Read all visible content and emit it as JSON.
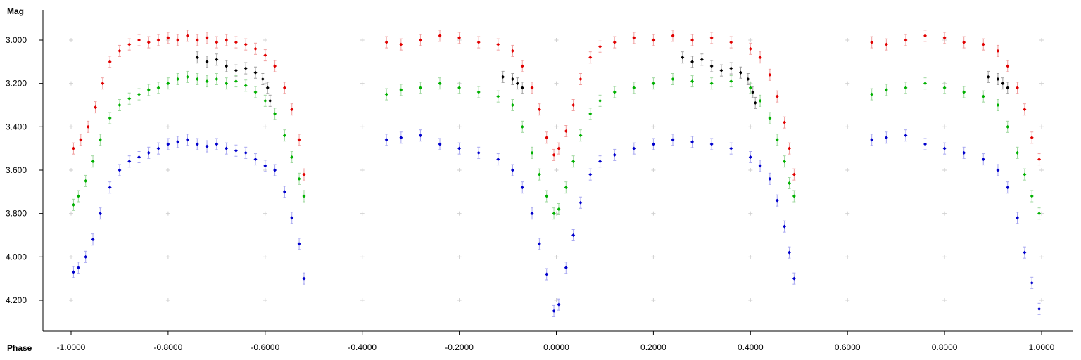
{
  "chart_data": {
    "type": "scatter",
    "title": "",
    "xlabel": "Phase",
    "ylabel": "Mag",
    "xlim": [
      -1.0,
      1.0
    ],
    "ylim": [
      2.87,
      4.35
    ],
    "y_inverted": true,
    "grid": "cross-markers",
    "legend": "none",
    "x_ticks": [
      "-1.0000",
      "-0.8000",
      "-0.6000",
      "-0.4000",
      "-0.2000",
      "0.0000",
      "0.2000",
      "0.4000",
      "0.6000",
      "0.8000",
      "1.0000"
    ],
    "y_ticks": [
      "3.000",
      "3.200",
      "3.400",
      "3.600",
      "3.800",
      "4.000",
      "4.200"
    ],
    "x_tick_values": [
      -1.0,
      -0.8,
      -0.6,
      -0.4,
      -0.2,
      0.0,
      0.2,
      0.4,
      0.6,
      0.8,
      1.0
    ],
    "y_tick_values": [
      3.0,
      3.2,
      3.4,
      3.6,
      3.8,
      4.0,
      4.2
    ],
    "series": [
      {
        "color": "#e00000",
        "error_color": "#f0a0a0",
        "points": [
          [
            -0.995,
            3.5
          ],
          [
            -0.98,
            3.46
          ],
          [
            -0.965,
            3.4
          ],
          [
            -0.95,
            3.31
          ],
          [
            -0.935,
            3.2
          ],
          [
            -0.92,
            3.1
          ],
          [
            -0.9,
            3.05
          ],
          [
            -0.88,
            3.02
          ],
          [
            -0.86,
            3.0
          ],
          [
            -0.84,
            3.01
          ],
          [
            -0.82,
            3.0
          ],
          [
            -0.8,
            2.99
          ],
          [
            -0.78,
            3.0
          ],
          [
            -0.76,
            2.98
          ],
          [
            -0.74,
            3.0
          ],
          [
            -0.72,
            2.99
          ],
          [
            -0.7,
            3.01
          ],
          [
            -0.68,
            3.0
          ],
          [
            -0.66,
            3.01
          ],
          [
            -0.64,
            3.02
          ],
          [
            -0.62,
            3.04
          ],
          [
            -0.6,
            3.07
          ],
          [
            -0.58,
            3.12
          ],
          [
            -0.56,
            3.22
          ],
          [
            -0.545,
            3.32
          ],
          [
            -0.53,
            3.46
          ],
          [
            -0.52,
            3.62
          ],
          [
            -0.35,
            3.01
          ],
          [
            -0.32,
            3.02
          ],
          [
            -0.28,
            3.0
          ],
          [
            -0.24,
            2.98
          ],
          [
            -0.2,
            2.99
          ],
          [
            -0.16,
            3.01
          ],
          [
            -0.12,
            3.02
          ],
          [
            -0.09,
            3.05
          ],
          [
            -0.07,
            3.12
          ],
          [
            -0.05,
            3.22
          ],
          [
            -0.035,
            3.32
          ],
          [
            -0.02,
            3.45
          ],
          [
            -0.005,
            3.53
          ],
          [
            0.005,
            3.5
          ],
          [
            0.02,
            3.42
          ],
          [
            0.035,
            3.3
          ],
          [
            0.05,
            3.18
          ],
          [
            0.07,
            3.08
          ],
          [
            0.09,
            3.03
          ],
          [
            0.12,
            3.01
          ],
          [
            0.16,
            2.99
          ],
          [
            0.2,
            3.0
          ],
          [
            0.24,
            2.98
          ],
          [
            0.28,
            3.0
          ],
          [
            0.32,
            2.99
          ],
          [
            0.36,
            3.01
          ],
          [
            0.4,
            3.04
          ],
          [
            0.42,
            3.08
          ],
          [
            0.44,
            3.16
          ],
          [
            0.455,
            3.26
          ],
          [
            0.47,
            3.38
          ],
          [
            0.48,
            3.5
          ],
          [
            0.49,
            3.62
          ],
          [
            0.65,
            3.01
          ],
          [
            0.68,
            3.02
          ],
          [
            0.72,
            3.0
          ],
          [
            0.76,
            2.98
          ],
          [
            0.8,
            2.99
          ],
          [
            0.84,
            3.01
          ],
          [
            0.88,
            3.02
          ],
          [
            0.91,
            3.05
          ],
          [
            0.93,
            3.12
          ],
          [
            0.95,
            3.22
          ],
          [
            0.965,
            3.32
          ],
          [
            0.98,
            3.45
          ],
          [
            0.995,
            3.55
          ]
        ]
      },
      {
        "color": "#000000",
        "error_color": "#a0a0a0",
        "points": [
          [
            -0.74,
            3.08
          ],
          [
            -0.72,
            3.1
          ],
          [
            -0.7,
            3.09
          ],
          [
            -0.68,
            3.12
          ],
          [
            -0.66,
            3.14
          ],
          [
            -0.64,
            3.13
          ],
          [
            -0.62,
            3.15
          ],
          [
            -0.605,
            3.18
          ],
          [
            -0.595,
            3.22
          ],
          [
            -0.59,
            3.28
          ],
          [
            -0.11,
            3.17
          ],
          [
            -0.09,
            3.18
          ],
          [
            -0.08,
            3.2
          ],
          [
            -0.07,
            3.22
          ],
          [
            0.26,
            3.08
          ],
          [
            0.28,
            3.1
          ],
          [
            0.3,
            3.09
          ],
          [
            0.32,
            3.12
          ],
          [
            0.34,
            3.14
          ],
          [
            0.36,
            3.13
          ],
          [
            0.38,
            3.15
          ],
          [
            0.395,
            3.18
          ],
          [
            0.405,
            3.24
          ],
          [
            0.41,
            3.29
          ],
          [
            0.89,
            3.17
          ],
          [
            0.91,
            3.18
          ],
          [
            0.92,
            3.2
          ],
          [
            0.93,
            3.22
          ]
        ]
      },
      {
        "color": "#00b000",
        "error_color": "#a0d8a0",
        "points": [
          [
            -0.995,
            3.76
          ],
          [
            -0.985,
            3.72
          ],
          [
            -0.97,
            3.65
          ],
          [
            -0.955,
            3.56
          ],
          [
            -0.94,
            3.46
          ],
          [
            -0.92,
            3.36
          ],
          [
            -0.9,
            3.3
          ],
          [
            -0.88,
            3.27
          ],
          [
            -0.86,
            3.25
          ],
          [
            -0.84,
            3.23
          ],
          [
            -0.82,
            3.22
          ],
          [
            -0.8,
            3.2
          ],
          [
            -0.78,
            3.18
          ],
          [
            -0.76,
            3.17
          ],
          [
            -0.74,
            3.18
          ],
          [
            -0.72,
            3.19
          ],
          [
            -0.7,
            3.18
          ],
          [
            -0.68,
            3.2
          ],
          [
            -0.66,
            3.19
          ],
          [
            -0.64,
            3.21
          ],
          [
            -0.62,
            3.24
          ],
          [
            -0.6,
            3.28
          ],
          [
            -0.58,
            3.34
          ],
          [
            -0.56,
            3.44
          ],
          [
            -0.545,
            3.54
          ],
          [
            -0.53,
            3.64
          ],
          [
            -0.52,
            3.72
          ],
          [
            -0.35,
            3.25
          ],
          [
            -0.32,
            3.23
          ],
          [
            -0.28,
            3.22
          ],
          [
            -0.24,
            3.2
          ],
          [
            -0.2,
            3.22
          ],
          [
            -0.16,
            3.24
          ],
          [
            -0.12,
            3.26
          ],
          [
            -0.09,
            3.3
          ],
          [
            -0.07,
            3.4
          ],
          [
            -0.05,
            3.52
          ],
          [
            -0.035,
            3.62
          ],
          [
            -0.02,
            3.72
          ],
          [
            -0.005,
            3.8
          ],
          [
            0.005,
            3.78
          ],
          [
            0.02,
            3.68
          ],
          [
            0.035,
            3.56
          ],
          [
            0.05,
            3.44
          ],
          [
            0.07,
            3.34
          ],
          [
            0.09,
            3.28
          ],
          [
            0.12,
            3.24
          ],
          [
            0.16,
            3.22
          ],
          [
            0.2,
            3.2
          ],
          [
            0.24,
            3.18
          ],
          [
            0.28,
            3.19
          ],
          [
            0.32,
            3.2
          ],
          [
            0.36,
            3.19
          ],
          [
            0.4,
            3.22
          ],
          [
            0.42,
            3.28
          ],
          [
            0.44,
            3.36
          ],
          [
            0.455,
            3.46
          ],
          [
            0.47,
            3.56
          ],
          [
            0.48,
            3.66
          ],
          [
            0.49,
            3.72
          ],
          [
            0.65,
            3.25
          ],
          [
            0.68,
            3.23
          ],
          [
            0.72,
            3.22
          ],
          [
            0.76,
            3.2
          ],
          [
            0.8,
            3.22
          ],
          [
            0.84,
            3.24
          ],
          [
            0.88,
            3.26
          ],
          [
            0.91,
            3.3
          ],
          [
            0.93,
            3.4
          ],
          [
            0.95,
            3.52
          ],
          [
            0.965,
            3.62
          ],
          [
            0.98,
            3.72
          ],
          [
            0.995,
            3.8
          ]
        ]
      },
      {
        "color": "#0000cc",
        "error_color": "#a8a8f0",
        "points": [
          [
            -0.995,
            4.07
          ],
          [
            -0.985,
            4.05
          ],
          [
            -0.97,
            4.0
          ],
          [
            -0.955,
            3.92
          ],
          [
            -0.94,
            3.8
          ],
          [
            -0.92,
            3.68
          ],
          [
            -0.9,
            3.6
          ],
          [
            -0.88,
            3.56
          ],
          [
            -0.86,
            3.54
          ],
          [
            -0.84,
            3.52
          ],
          [
            -0.82,
            3.5
          ],
          [
            -0.8,
            3.48
          ],
          [
            -0.78,
            3.47
          ],
          [
            -0.76,
            3.46
          ],
          [
            -0.74,
            3.48
          ],
          [
            -0.72,
            3.49
          ],
          [
            -0.7,
            3.48
          ],
          [
            -0.68,
            3.5
          ],
          [
            -0.66,
            3.51
          ],
          [
            -0.64,
            3.52
          ],
          [
            -0.62,
            3.55
          ],
          [
            -0.6,
            3.58
          ],
          [
            -0.58,
            3.6
          ],
          [
            -0.56,
            3.7
          ],
          [
            -0.545,
            3.82
          ],
          [
            -0.53,
            3.94
          ],
          [
            -0.52,
            4.1
          ],
          [
            -0.35,
            3.46
          ],
          [
            -0.32,
            3.45
          ],
          [
            -0.28,
            3.44
          ],
          [
            -0.24,
            3.48
          ],
          [
            -0.2,
            3.5
          ],
          [
            -0.16,
            3.52
          ],
          [
            -0.12,
            3.55
          ],
          [
            -0.09,
            3.6
          ],
          [
            -0.07,
            3.68
          ],
          [
            -0.05,
            3.8
          ],
          [
            -0.035,
            3.94
          ],
          [
            -0.02,
            4.08
          ],
          [
            -0.005,
            4.25
          ],
          [
            0.005,
            4.22
          ],
          [
            0.02,
            4.05
          ],
          [
            0.035,
            3.9
          ],
          [
            0.05,
            3.75
          ],
          [
            0.07,
            3.62
          ],
          [
            0.09,
            3.56
          ],
          [
            0.12,
            3.53
          ],
          [
            0.16,
            3.5
          ],
          [
            0.2,
            3.48
          ],
          [
            0.24,
            3.46
          ],
          [
            0.28,
            3.47
          ],
          [
            0.32,
            3.48
          ],
          [
            0.36,
            3.5
          ],
          [
            0.4,
            3.54
          ],
          [
            0.42,
            3.58
          ],
          [
            0.44,
            3.64
          ],
          [
            0.455,
            3.74
          ],
          [
            0.47,
            3.86
          ],
          [
            0.48,
            3.98
          ],
          [
            0.49,
            4.1
          ],
          [
            0.65,
            3.46
          ],
          [
            0.68,
            3.45
          ],
          [
            0.72,
            3.44
          ],
          [
            0.76,
            3.48
          ],
          [
            0.8,
            3.5
          ],
          [
            0.84,
            3.52
          ],
          [
            0.88,
            3.55
          ],
          [
            0.91,
            3.6
          ],
          [
            0.93,
            3.68
          ],
          [
            0.95,
            3.82
          ],
          [
            0.965,
            3.98
          ],
          [
            0.98,
            4.12
          ],
          [
            0.995,
            4.24
          ]
        ]
      }
    ]
  }
}
